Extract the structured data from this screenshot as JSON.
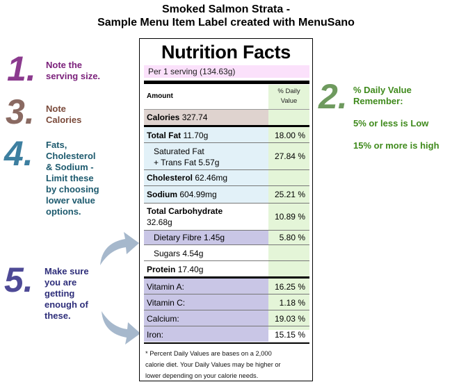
{
  "page": {
    "title_line1": "Smoked Salmon Strata -",
    "title_line2": "Sample Menu Item Label created with MenuSano"
  },
  "notes": {
    "n1": {
      "number": "1.",
      "line1": "Note the",
      "line2": "serving size.",
      "color": "#7a1f7a"
    },
    "n2": {
      "number": "2.",
      "line1": "% Daily Value",
      "line2": "Remember:",
      "line3": "5% or less is Low",
      "line4": "15% or more is high",
      "color": "#3f8a1c"
    },
    "n3": {
      "number": "3.",
      "line1": "Note",
      "line2": "Calories",
      "color": "#7a4a3a"
    },
    "n4": {
      "number": "4.",
      "line1": "Fats,",
      "line2": "Cholesterol",
      "line3": "& Sodium -",
      "line4": "Limit these",
      "line5": "by choosing",
      "line6": "lower value",
      "line7": "options.",
      "color": "#1d5a6e"
    },
    "n5": {
      "number": "5.",
      "line1": "Make sure",
      "line2": "you are",
      "line3": "getting",
      "line4": "enough of",
      "line5": "these.",
      "color": "#2e2e7a"
    }
  },
  "label": {
    "title": "Nutrition Facts",
    "serving": "Per 1 serving (134.63g)",
    "header_amount": "Amount",
    "header_pct_line1": "% Daily",
    "header_pct_line2": "Value",
    "calories": {
      "label": "Calories",
      "value": "327.74"
    },
    "total_fat": {
      "label": "Total Fat",
      "value": "11.70g",
      "pct": "18.00 %"
    },
    "sat_fat": {
      "line1": "Saturated Fat",
      "line2": "+ Trans Fat 5.57g",
      "pct": "27.84 %"
    },
    "cholesterol": {
      "label": "Cholesterol",
      "value": "62.46mg"
    },
    "sodium": {
      "label": "Sodium",
      "value": "604.99mg",
      "pct": "25.21 %"
    },
    "carbs": {
      "label": "Total Carbohydrate",
      "value": "32.68g",
      "pct": "10.89 %"
    },
    "fibre": {
      "label": "Dietary Fibre 1.45g",
      "pct": "5.80 %"
    },
    "sugars": {
      "label": "Sugars 4.54g"
    },
    "protein": {
      "label": "Protein",
      "value": "17.40g"
    },
    "vitamin_a": {
      "label": "Vitamin A:",
      "pct": "16.25 %"
    },
    "vitamin_c": {
      "label": "Vitamin C:",
      "pct": "1.18 %"
    },
    "calcium": {
      "label": "Calcium:",
      "pct": "19.03 %"
    },
    "iron": {
      "label": "Iron:",
      "pct": "15.15 %"
    },
    "footnote_line1": "* Percent Daily Values are bases on a 2,000",
    "footnote_line2": "calorie diet. Your Daily Values may be higher or",
    "footnote_line3": "lower depending on your calorie needs."
  },
  "colors": {
    "serving_bg": "#fbe1fb",
    "calories_bg": "#dfd3cf",
    "fat_bg": "#e2f1f8",
    "micro_bg": "#c9c6e6",
    "pct_col_bg": "#e4f5d8",
    "arrow": "#9fb3c8"
  }
}
